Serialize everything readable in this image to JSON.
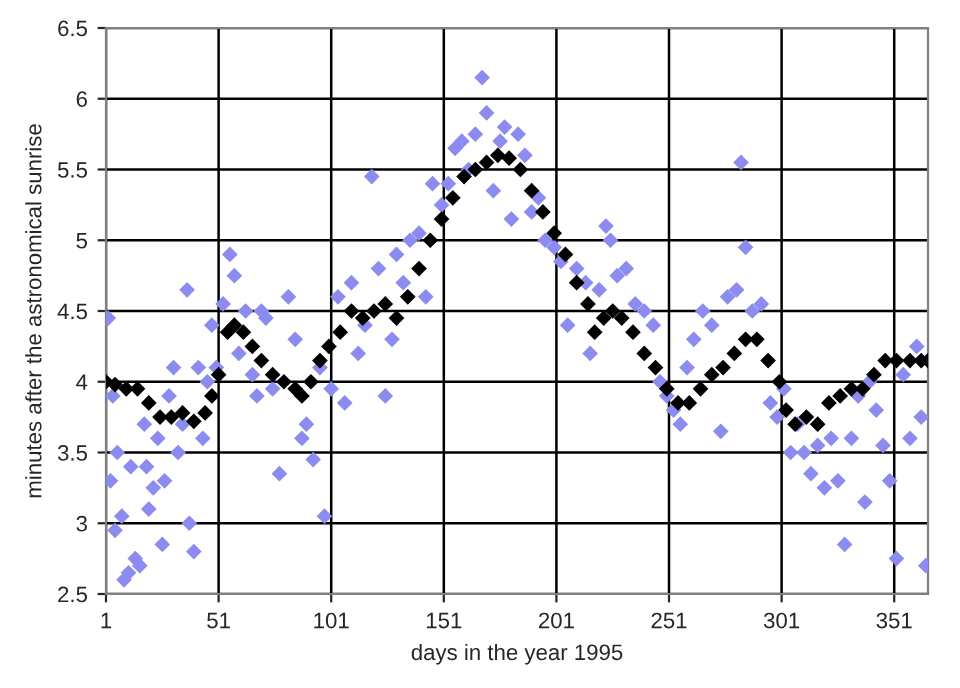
{
  "chart_data": {
    "type": "scatter",
    "xlabel": "days in the year 1995",
    "ylabel": "minutes after the astronomical sunrise",
    "xlim": [
      1,
      366
    ],
    "xticks": [
      1,
      51,
      101,
      151,
      201,
      251,
      301,
      351
    ],
    "ylim": [
      2.5,
      6.5
    ],
    "yticks": [
      2.5,
      3,
      3.5,
      4,
      4.5,
      5,
      5.5,
      6,
      6.5
    ],
    "grid": true,
    "marker": "diamond",
    "legend": false,
    "series": [
      {
        "color": "#8c8cf0",
        "x": [
          2,
          3,
          4,
          5,
          6,
          8,
          9,
          11,
          12,
          14,
          16,
          18,
          19,
          20,
          22,
          24,
          26,
          27,
          29,
          31,
          33,
          35,
          37,
          38,
          40,
          42,
          44,
          46,
          48,
          50,
          53,
          56,
          58,
          60,
          63,
          66,
          68,
          70,
          72,
          75,
          78,
          82,
          85,
          88,
          90,
          93,
          96,
          98,
          101,
          104,
          107,
          110,
          113,
          116,
          119,
          122,
          125,
          128,
          130,
          133,
          136,
          140,
          143,
          146,
          150,
          153,
          156,
          159,
          162,
          165,
          168,
          170,
          173,
          176,
          178,
          181,
          184,
          187,
          190,
          193,
          196,
          200,
          203,
          206,
          210,
          214,
          216,
          220,
          223,
          225,
          228,
          232,
          236,
          240,
          244,
          247,
          250,
          253,
          256,
          259,
          262,
          266,
          270,
          274,
          277,
          281,
          283,
          285,
          288,
          292,
          296,
          299,
          302,
          305,
          308,
          311,
          314,
          317,
          320,
          323,
          326,
          329,
          332,
          335,
          338,
          340,
          343,
          346,
          349,
          352,
          355,
          358,
          361,
          363,
          365
        ],
        "values": [
          4.45,
          3.3,
          3.9,
          2.95,
          3.5,
          3.05,
          2.6,
          2.65,
          3.4,
          2.75,
          2.7,
          3.7,
          3.4,
          3.1,
          3.25,
          3.6,
          2.85,
          3.3,
          3.9,
          4.1,
          3.5,
          3.7,
          4.65,
          3.0,
          2.8,
          4.1,
          3.6,
          4.0,
          4.4,
          4.1,
          4.55,
          4.9,
          4.75,
          4.2,
          4.5,
          4.05,
          3.9,
          4.5,
          4.45,
          3.95,
          3.35,
          4.6,
          4.3,
          3.6,
          3.7,
          3.45,
          4.1,
          3.05,
          3.95,
          4.6,
          3.85,
          4.7,
          4.2,
          4.4,
          5.45,
          4.8,
          3.9,
          4.3,
          4.9,
          4.7,
          5.0,
          5.05,
          4.6,
          5.4,
          5.25,
          5.4,
          5.65,
          5.7,
          5.5,
          5.75,
          6.15,
          5.9,
          5.35,
          5.7,
          5.8,
          5.15,
          5.75,
          5.6,
          5.2,
          5.3,
          5.0,
          4.95,
          4.85,
          4.4,
          4.8,
          4.7,
          4.2,
          4.65,
          5.1,
          5.0,
          4.75,
          4.8,
          4.55,
          4.5,
          4.4,
          4.0,
          3.9,
          3.8,
          3.7,
          4.1,
          4.3,
          4.5,
          4.4,
          3.65,
          4.6,
          4.65,
          5.55,
          4.95,
          4.5,
          4.55,
          3.85,
          3.75,
          3.95,
          3.5,
          3.7,
          3.5,
          3.35,
          3.55,
          3.25,
          3.6,
          3.3,
          2.85,
          3.6,
          3.9,
          3.15,
          4.0,
          3.8,
          3.55,
          3.3,
          2.75,
          4.05,
          3.6,
          4.25,
          3.75,
          2.7
        ]
      },
      {
        "color": "#000000",
        "x": [
          1,
          5,
          10,
          15,
          20,
          25,
          30,
          35,
          40,
          45,
          48,
          51,
          55,
          58,
          62,
          66,
          70,
          75,
          80,
          85,
          88,
          92,
          96,
          100,
          105,
          110,
          115,
          120,
          125,
          130,
          135,
          140,
          145,
          150,
          155,
          160,
          165,
          170,
          175,
          180,
          185,
          190,
          195,
          200,
          205,
          210,
          215,
          218,
          222,
          226,
          230,
          235,
          240,
          245,
          250,
          255,
          260,
          265,
          270,
          275,
          280,
          285,
          290,
          295,
          300,
          303,
          307,
          312,
          317,
          322,
          327,
          332,
          337,
          342,
          347,
          352,
          358,
          363,
          366
        ],
        "values": [
          4.0,
          3.98,
          3.95,
          3.95,
          3.85,
          3.75,
          3.75,
          3.78,
          3.72,
          3.78,
          3.9,
          4.05,
          4.35,
          4.4,
          4.35,
          4.25,
          4.15,
          4.05,
          4.0,
          3.95,
          3.9,
          4.0,
          4.15,
          4.25,
          4.35,
          4.5,
          4.45,
          4.5,
          4.55,
          4.45,
          4.6,
          4.8,
          5.0,
          5.15,
          5.3,
          5.45,
          5.5,
          5.55,
          5.6,
          5.58,
          5.5,
          5.35,
          5.2,
          5.05,
          4.9,
          4.7,
          4.55,
          4.35,
          4.45,
          4.5,
          4.45,
          4.35,
          4.2,
          4.1,
          3.95,
          3.85,
          3.85,
          3.95,
          4.05,
          4.1,
          4.2,
          4.3,
          4.3,
          4.15,
          4.0,
          3.8,
          3.7,
          3.75,
          3.7,
          3.85,
          3.9,
          3.95,
          3.95,
          4.05,
          4.15,
          4.15,
          4.15,
          4.15,
          4.15
        ]
      }
    ]
  }
}
